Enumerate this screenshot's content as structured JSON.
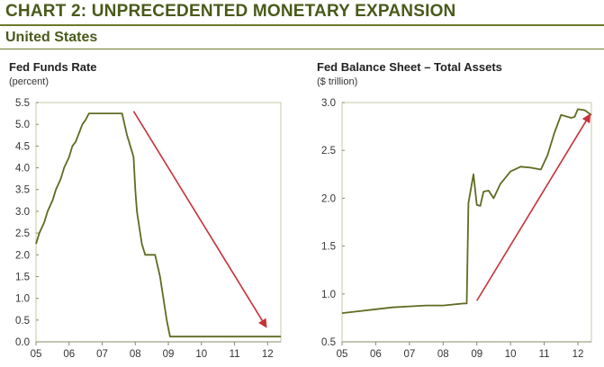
{
  "header": {
    "title": "CHART 2: UNPRECEDENTED MONETARY EXPANSION",
    "subtitle": "United States"
  },
  "colors": {
    "header": "#4a5a1a",
    "line": "#5f6b22",
    "arrow": "#c8303a",
    "frame": "#c9c9a8",
    "tick_line": "#8a8a6a"
  },
  "chart_data": [
    {
      "type": "line",
      "title": "Fed Funds Rate",
      "subtitle": "(percent)",
      "xlabel": "",
      "ylabel": "",
      "x_tick_labels": [
        "05",
        "06",
        "07",
        "08",
        "09",
        "10",
        "11",
        "12"
      ],
      "y_tick_labels": [
        "0.0",
        "0.5",
        "1.0",
        "1.5",
        "2.0",
        "2.5",
        "3.0",
        "3.5",
        "4.0",
        "4.5",
        "5.0",
        "5.5"
      ],
      "xlim": [
        2005.0,
        2012.4
      ],
      "ylim": [
        0,
        5.5
      ],
      "grid": false,
      "series": [
        {
          "x": [
            2005.0,
            2005.1,
            2005.25,
            2005.35,
            2005.5,
            2005.6,
            2005.75,
            2005.85,
            2006.0,
            2006.1,
            2006.2,
            2006.3,
            2006.4,
            2006.5,
            2006.6,
            2007.6,
            2007.75,
            2007.85,
            2007.95,
            2008.0,
            2008.05,
            2008.1,
            2008.2,
            2008.3,
            2008.4,
            2008.6,
            2008.75,
            2008.85,
            2008.95,
            2009.05,
            2012.4
          ],
          "y": [
            2.25,
            2.5,
            2.75,
            3.0,
            3.25,
            3.5,
            3.75,
            4.0,
            4.25,
            4.5,
            4.6,
            4.8,
            5.0,
            5.1,
            5.25,
            5.25,
            4.75,
            4.5,
            4.25,
            3.5,
            3.0,
            2.75,
            2.25,
            2.0,
            2.0,
            2.0,
            1.5,
            1.0,
            0.5,
            0.12,
            0.12
          ]
        }
      ],
      "annotations": [
        {
          "type": "arrow",
          "from": [
            2007.95,
            5.3
          ],
          "to": [
            2011.95,
            0.35
          ]
        }
      ]
    },
    {
      "type": "line",
      "title": "Fed Balance Sheet – Total Assets",
      "subtitle": "($ trillion)",
      "xlabel": "",
      "ylabel": "",
      "x_tick_labels": [
        "05",
        "06",
        "07",
        "08",
        "09",
        "10",
        "11",
        "12"
      ],
      "y_tick_labels": [
        "0.5",
        "1.0",
        "1.5",
        "2.0",
        "2.5",
        "3.0"
      ],
      "xlim": [
        2005.0,
        2012.4
      ],
      "ylim": [
        0.5,
        3.0
      ],
      "grid": false,
      "series": [
        {
          "x": [
            2005.0,
            2005.5,
            2006.0,
            2006.5,
            2007.0,
            2007.5,
            2008.0,
            2008.3,
            2008.6,
            2008.7,
            2008.75,
            2008.9,
            2009.0,
            2009.1,
            2009.2,
            2009.35,
            2009.5,
            2009.7,
            2010.0,
            2010.3,
            2010.6,
            2010.9,
            2011.1,
            2011.3,
            2011.5,
            2011.8,
            2011.9,
            2012.0,
            2012.2,
            2012.4
          ],
          "y": [
            0.8,
            0.82,
            0.84,
            0.86,
            0.87,
            0.88,
            0.88,
            0.89,
            0.9,
            0.9,
            1.95,
            2.25,
            1.93,
            1.92,
            2.07,
            2.08,
            2.0,
            2.15,
            2.28,
            2.33,
            2.32,
            2.3,
            2.45,
            2.68,
            2.87,
            2.84,
            2.85,
            2.93,
            2.92,
            2.87
          ]
        }
      ],
      "annotations": [
        {
          "type": "arrow",
          "from": [
            2009.0,
            0.93
          ],
          "to": [
            2012.35,
            2.87
          ]
        }
      ]
    }
  ]
}
